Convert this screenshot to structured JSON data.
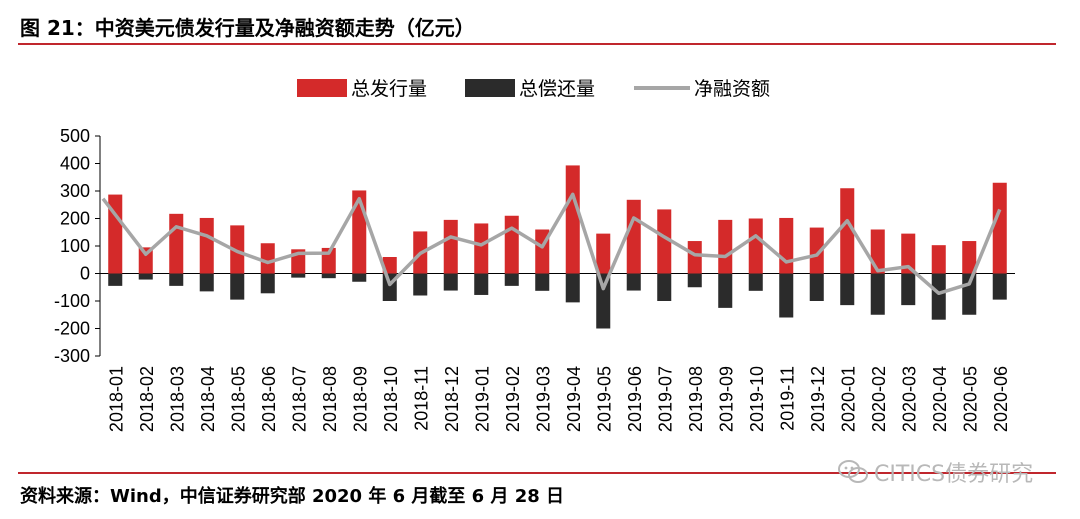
{
  "header": {
    "title": "图 21：中资美元债发行量及净融资额走势（亿元）"
  },
  "footer": {
    "source": "资料来源：Wind，中信证券研究部  2020 年 6 月截至 6 月 28 日"
  },
  "watermark": {
    "text": "CITICS债券研究",
    "icon": "wechat-icon"
  },
  "chart_data": {
    "type": "bar",
    "legend_position": "top-center",
    "ylim": [
      -300,
      500
    ],
    "yticks": [
      500,
      400,
      300,
      200,
      100,
      0,
      -100,
      -200,
      -300
    ],
    "categories": [
      "2018-01",
      "2018-02",
      "2018-03",
      "2018-04",
      "2018-05",
      "2018-06",
      "2018-07",
      "2018-08",
      "2018-09",
      "2018-10",
      "2018-11",
      "2018-12",
      "2019-01",
      "2019-02",
      "2019-03",
      "2019-04",
      "2019-05",
      "2019-06",
      "2019-07",
      "2019-08",
      "2019-09",
      "2019-10",
      "2019-11",
      "2019-12",
      "2020-01",
      "2020-02",
      "2020-03",
      "2020-04",
      "2020-05",
      "2020-06"
    ],
    "series": [
      {
        "name": "总发行量",
        "type": "bar",
        "color": "#d42a2a",
        "values": [
          287,
          95,
          217,
          202,
          175,
          110,
          88,
          93,
          302,
          60,
          153,
          195,
          182,
          210,
          160,
          393,
          145,
          268,
          233,
          118,
          195,
          200,
          202,
          167,
          310,
          160,
          145,
          103,
          118,
          330
        ]
      },
      {
        "name": "总偿还量",
        "type": "bar",
        "color": "#2b2b2b",
        "values": [
          -45,
          -22,
          -45,
          -65,
          -95,
          -72,
          -15,
          -17,
          -30,
          -100,
          -80,
          -62,
          -78,
          -45,
          -63,
          -105,
          -200,
          -62,
          -100,
          -50,
          -125,
          -63,
          -160,
          -100,
          -115,
          -150,
          -115,
          -168,
          -150,
          -95
        ]
      },
      {
        "name": "净融资额",
        "type": "line",
        "color": "#a6a6a6",
        "values": [
          272,
          70,
          170,
          137,
          80,
          40,
          73,
          74,
          272,
          -40,
          73,
          133,
          104,
          165,
          97,
          288,
          -55,
          202,
          133,
          68,
          62,
          137,
          42,
          67,
          192,
          10,
          25,
          -72,
          -38,
          233
        ]
      }
    ]
  }
}
